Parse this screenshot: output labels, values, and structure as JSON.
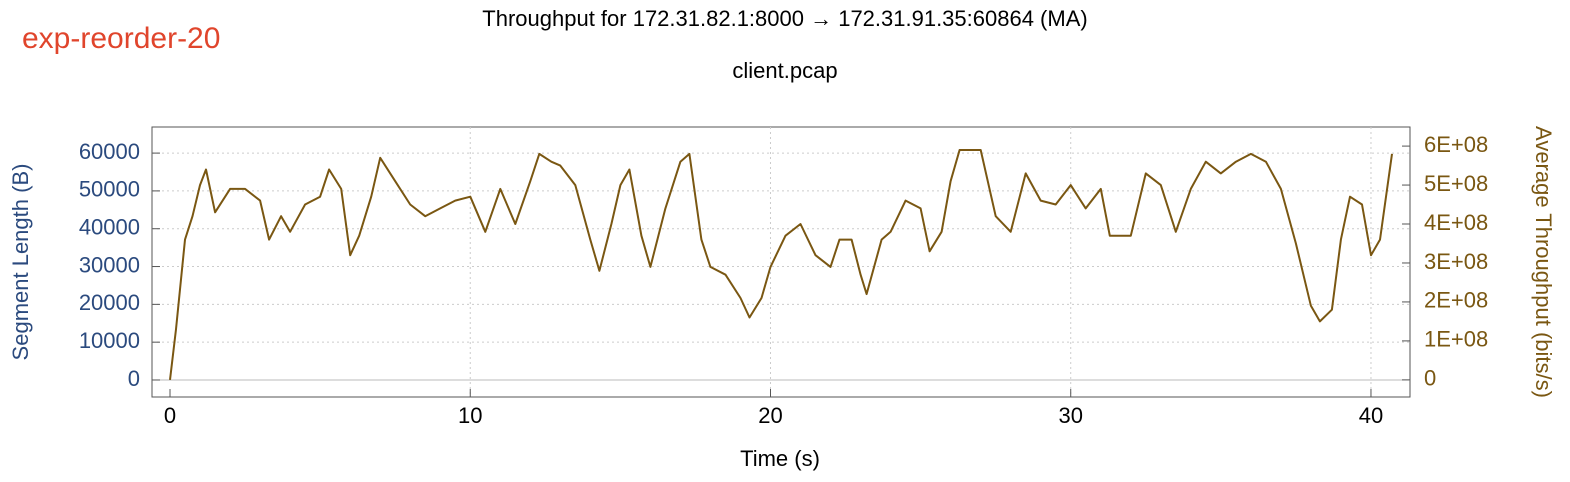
{
  "chart_data": {
    "type": "line",
    "title": "Throughput for 172.31.82.1:8000 → 172.31.91.35:60864 (MA)",
    "subtitle": "client.pcap",
    "annotation": "exp-reorder-20",
    "x_label": "Time (s)",
    "y_label": "Segment Length (B)",
    "y2_label": "Average Throughput (bits/s)",
    "x": [
      0,
      0.2,
      0.5,
      0.75,
      1,
      1.2,
      1.5,
      2,
      2.5,
      3,
      3.3,
      3.7,
      4,
      4.5,
      5,
      5.3,
      5.7,
      6,
      6.3,
      6.7,
      7,
      7.5,
      8,
      8.5,
      9,
      9.5,
      10,
      10.5,
      11,
      11.5,
      12,
      12.3,
      12.7,
      13,
      13.5,
      14,
      14.3,
      14.7,
      15,
      15.3,
      15.7,
      16,
      16.5,
      17,
      17.3,
      17.7,
      18,
      18.5,
      19,
      19.3,
      19.7,
      20,
      20.5,
      21,
      21.5,
      22,
      22.3,
      22.7,
      23,
      23.2,
      23.7,
      24,
      24.5,
      25,
      25.3,
      25.7,
      26,
      26.3,
      27,
      27.5,
      28,
      28.5,
      29,
      29.5,
      30,
      30.5,
      31,
      31.3,
      32,
      32.5,
      33,
      33.5,
      34,
      34.5,
      35,
      35.5,
      36,
      36.5,
      37,
      37.5,
      38,
      38.3,
      38.7,
      39,
      39.3,
      39.7,
      40,
      40.3,
      40.7
    ],
    "series": [
      {
        "color": "#7a5712",
        "axis": "y2",
        "values": [
          0,
          130000000.0,
          360000000.0,
          420000000.0,
          500000000.0,
          540000000.0,
          430000000.0,
          490000000.0,
          490000000.0,
          460000000.0,
          360000000.0,
          420000000.0,
          380000000.0,
          450000000.0,
          470000000.0,
          540000000.0,
          490000000.0,
          320000000.0,
          370000000.0,
          470000000.0,
          570000000.0,
          510000000.0,
          450000000.0,
          420000000.0,
          440000000.0,
          460000000.0,
          470000000.0,
          380000000.0,
          490000000.0,
          400000000.0,
          510000000.0,
          580000000.0,
          560000000.0,
          550000000.0,
          500000000.0,
          360000000.0,
          280000000.0,
          400000000.0,
          500000000.0,
          540000000.0,
          370000000.0,
          290000000.0,
          440000000.0,
          560000000.0,
          580000000.0,
          360000000.0,
          290000000.0,
          270000000.0,
          210000000.0,
          160000000.0,
          210000000.0,
          290000000.0,
          370000000.0,
          400000000.0,
          320000000.0,
          290000000.0,
          360000000.0,
          360000000.0,
          270000000.0,
          220000000.0,
          360000000.0,
          380000000.0,
          460000000.0,
          440000000.0,
          330000000.0,
          380000000.0,
          510000000.0,
          590000000.0,
          590000000.0,
          420000000.0,
          380000000.0,
          530000000.0,
          460000000.0,
          450000000.0,
          500000000.0,
          440000000.0,
          490000000.0,
          370000000.0,
          370000000.0,
          530000000.0,
          500000000.0,
          380000000.0,
          490000000.0,
          560000000.0,
          530000000.0,
          560000000.0,
          580000000.0,
          560000000.0,
          490000000.0,
          350000000.0,
          190000000.0,
          150000000.0,
          180000000.0,
          360000000.0,
          470000000.0,
          450000000.0,
          320000000.0,
          360000000.0,
          580000000.0
        ]
      }
    ],
    "xlim": [
      -0.6,
      41.3
    ],
    "xticks": [
      0,
      10,
      20,
      30,
      40
    ],
    "ylim": [
      -4500,
      66900
    ],
    "yticks": [
      0,
      10000,
      20000,
      30000,
      40000,
      50000,
      60000
    ],
    "y2lim": [
      -44000000,
      649000000
    ],
    "y2ticks": [
      0,
      {
        "value": 100000000,
        "label": "1E+08"
      },
      {
        "value": 200000000,
        "label": "2E+08"
      },
      {
        "value": 300000000,
        "label": "3E+08"
      },
      {
        "value": 400000000,
        "label": "4E+08"
      },
      {
        "value": 500000000,
        "label": "5E+08"
      },
      {
        "value": 600000000,
        "label": "6E+08"
      }
    ],
    "grid": true
  }
}
